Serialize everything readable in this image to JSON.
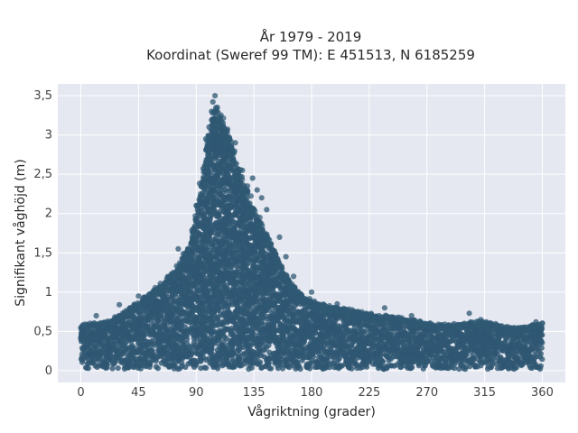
{
  "chart_data": {
    "type": "scatter",
    "title": [
      "År 1979 - 2019",
      "Koordinat (Sweref 99 TM): E 451513, N 6185259"
    ],
    "xlabel": "Vågriktning (grader)",
    "ylabel": "Signifikant våghöjd (m)",
    "xlim": [
      -18,
      378
    ],
    "ylim": [
      -0.15,
      3.65
    ],
    "xticks": [
      0,
      45,
      90,
      135,
      180,
      225,
      270,
      315,
      360
    ],
    "xtick_labels": [
      "0",
      "45",
      "90",
      "135",
      "180",
      "225",
      "270",
      "315",
      "360"
    ],
    "yticks": [
      0,
      0.5,
      1,
      1.5,
      2,
      2.5,
      3,
      3.5
    ],
    "ytick_labels": [
      "0",
      "0,5",
      "1",
      "1,5",
      "2",
      "2,5",
      "3",
      "3,5"
    ],
    "grid": true,
    "legend": "none",
    "colors": {
      "plot_bg": "#e5e8f0",
      "grid": "#ffffff",
      "marker": "#2f5873"
    },
    "point_count_note": "",
    "envelope": {
      "direction_deg": [
        0,
        20,
        30,
        45,
        60,
        75,
        85,
        90,
        95,
        100,
        105,
        110,
        115,
        120,
        125,
        130,
        135,
        140,
        150,
        160,
        170,
        180,
        190,
        200,
        225,
        250,
        270,
        285,
        300,
        315,
        330,
        345,
        360
      ],
      "max_hs_m": [
        0.58,
        0.62,
        0.7,
        0.88,
        1.05,
        1.3,
        1.6,
        1.95,
        2.5,
        3.05,
        3.35,
        3.2,
        3.05,
        2.75,
        2.45,
        2.3,
        2.05,
        1.9,
        1.55,
        1.2,
        1.0,
        0.88,
        0.83,
        0.8,
        0.72,
        0.67,
        0.6,
        0.58,
        0.6,
        0.63,
        0.55,
        0.55,
        0.6
      ],
      "min_hs_m": 0.02
    },
    "outliers": [
      {
        "x": 104.7,
        "y": 3.5
      },
      {
        "x": 103.0,
        "y": 3.42
      },
      {
        "x": 106.5,
        "y": 3.35
      },
      {
        "x": 102.0,
        "y": 3.3
      },
      {
        "x": 108.0,
        "y": 3.22
      },
      {
        "x": 100.0,
        "y": 3.1
      },
      {
        "x": 113.5,
        "y": 3.05
      },
      {
        "x": 97.5,
        "y": 2.95
      },
      {
        "x": 120.5,
        "y": 2.9
      },
      {
        "x": 126.0,
        "y": 2.55
      },
      {
        "x": 134.0,
        "y": 2.45
      },
      {
        "x": 137.5,
        "y": 2.3
      },
      {
        "x": 130.0,
        "y": 2.35
      },
      {
        "x": 141.0,
        "y": 2.2
      },
      {
        "x": 145.0,
        "y": 2.05
      },
      {
        "x": 90.0,
        "y": 2.1
      },
      {
        "x": 155.0,
        "y": 1.7
      },
      {
        "x": 160.0,
        "y": 1.45
      },
      {
        "x": 166.0,
        "y": 1.2
      },
      {
        "x": 76.0,
        "y": 1.55
      },
      {
        "x": 180.0,
        "y": 1.0
      },
      {
        "x": 200.0,
        "y": 0.85
      },
      {
        "x": 237.0,
        "y": 0.8
      },
      {
        "x": 258.0,
        "y": 0.7
      },
      {
        "x": 303.0,
        "y": 0.73
      },
      {
        "x": 312.0,
        "y": 0.65
      },
      {
        "x": 355.0,
        "y": 0.62
      },
      {
        "x": 12.0,
        "y": 0.7
      },
      {
        "x": 30.0,
        "y": 0.84
      },
      {
        "x": 45.0,
        "y": 0.95
      }
    ]
  }
}
